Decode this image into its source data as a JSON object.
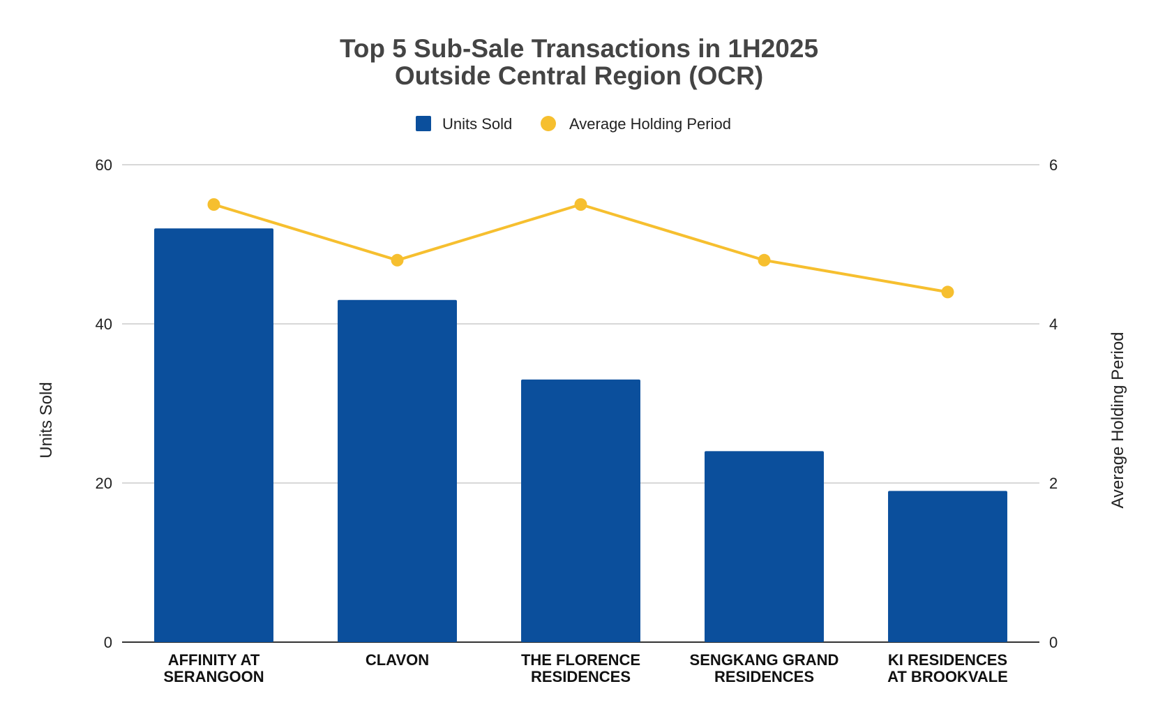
{
  "chart_data": {
    "type": "bar",
    "title_lines": [
      "Top 5 Sub-Sale Transactions in 1H2025",
      "Outside Central Region (OCR)"
    ],
    "categories": [
      [
        "AFFINITY AT",
        "SERANGOON"
      ],
      [
        "CLAVON"
      ],
      [
        "THE FLORENCE",
        "RESIDENCES"
      ],
      [
        "SENGKANG GRAND",
        "RESIDENCES"
      ],
      [
        "KI RESIDENCES",
        "AT BROOKVALE"
      ]
    ],
    "series": [
      {
        "name": "Units Sold",
        "type": "bar",
        "axis": "left",
        "values": [
          52,
          43,
          33,
          24,
          19
        ]
      },
      {
        "name": "Average Holding Period",
        "type": "line",
        "axis": "right",
        "values": [
          5.5,
          4.8,
          5.5,
          4.8,
          4.4
        ]
      }
    ],
    "ylabel": "Units Sold",
    "y2label": "Average Holding Period",
    "ylim": [
      0,
      60
    ],
    "y2lim": [
      0,
      6
    ],
    "yticks": [
      "0",
      "20",
      "40",
      "60"
    ],
    "y2ticks": [
      "0",
      "2",
      "4",
      "6"
    ],
    "legend_position": "top",
    "grid": true,
    "colors": {
      "bar": "#0b4f9c",
      "line": "#f6bf2f",
      "grid": "#cccccc",
      "axis": "#333333",
      "title": "#444444"
    }
  }
}
